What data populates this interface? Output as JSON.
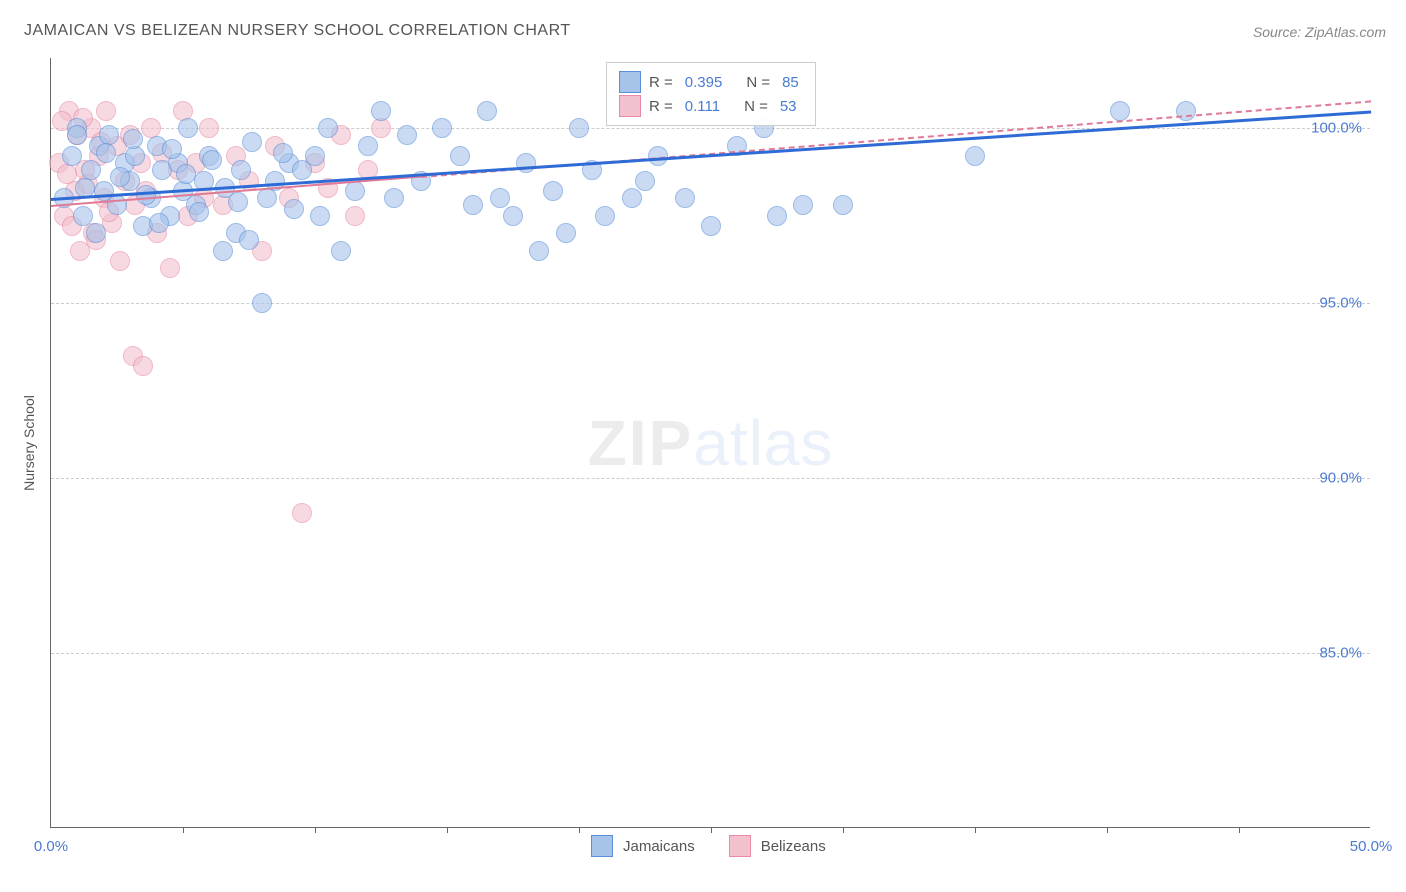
{
  "chart": {
    "type": "scatter",
    "title": "JAMAICAN VS BELIZEAN NURSERY SCHOOL CORRELATION CHART",
    "source_label": "Source: ZipAtlas.com",
    "y_axis_label": "Nursery School",
    "watermark_zip": "ZIP",
    "watermark_atlas": "atlas",
    "background_color": "#ffffff",
    "grid_color": "#cccccc",
    "axis_color": "#666666",
    "label_color": "#4a7bd0",
    "title_color": "#555555",
    "title_fontsize": 16,
    "label_fontsize": 15,
    "xlim": [
      0,
      50
    ],
    "ylim": [
      80,
      102
    ],
    "x_tick_step": 5,
    "y_ticks": [
      85,
      90,
      95,
      100
    ],
    "y_tick_labels": [
      "85.0%",
      "90.0%",
      "95.0%",
      "100.0%"
    ],
    "x_start_label": "0.0%",
    "x_end_label": "50.0%",
    "marker_radius": 10,
    "series": [
      {
        "name": "Jamaicans",
        "color_fill": "#a6c3ea",
        "color_stroke": "#5b8fd8",
        "trend_color": "#2e6bd6",
        "trend_width": 3,
        "trend_style": "solid",
        "R": "0.395",
        "N": "85",
        "trend": {
          "x1": 0,
          "y1": 98.0,
          "x2": 50,
          "y2": 100.5
        },
        "points": [
          [
            0.5,
            98.0
          ],
          [
            0.8,
            99.2
          ],
          [
            1.0,
            100.0
          ],
          [
            1.2,
            97.5
          ],
          [
            1.5,
            98.8
          ],
          [
            1.8,
            99.5
          ],
          [
            2.0,
            98.2
          ],
          [
            2.2,
            99.8
          ],
          [
            2.5,
            97.8
          ],
          [
            2.8,
            99.0
          ],
          [
            3.0,
            98.5
          ],
          [
            3.2,
            99.2
          ],
          [
            3.5,
            97.2
          ],
          [
            3.8,
            98.0
          ],
          [
            4.0,
            99.5
          ],
          [
            4.2,
            98.8
          ],
          [
            4.5,
            97.5
          ],
          [
            4.8,
            99.0
          ],
          [
            5.0,
            98.2
          ],
          [
            5.2,
            100.0
          ],
          [
            5.5,
            97.8
          ],
          [
            5.8,
            98.5
          ],
          [
            6.0,
            99.2
          ],
          [
            6.5,
            96.5
          ],
          [
            7.0,
            97.0
          ],
          [
            7.2,
            98.8
          ],
          [
            7.5,
            96.8
          ],
          [
            8.0,
            95.0
          ],
          [
            8.5,
            98.5
          ],
          [
            9.0,
            99.0
          ],
          [
            9.5,
            98.8
          ],
          [
            10.0,
            99.2
          ],
          [
            10.2,
            97.5
          ],
          [
            10.5,
            100.0
          ],
          [
            11.0,
            96.5
          ],
          [
            11.5,
            98.2
          ],
          [
            12.0,
            99.5
          ],
          [
            12.5,
            100.5
          ],
          [
            13.0,
            98.0
          ],
          [
            13.5,
            99.8
          ],
          [
            14.0,
            98.5
          ],
          [
            14.8,
            100.0
          ],
          [
            15.5,
            99.2
          ],
          [
            16.0,
            97.8
          ],
          [
            16.5,
            100.5
          ],
          [
            17.0,
            98.0
          ],
          [
            17.5,
            97.5
          ],
          [
            18.0,
            99.0
          ],
          [
            18.5,
            96.5
          ],
          [
            19.0,
            98.2
          ],
          [
            19.5,
            97.0
          ],
          [
            20.0,
            100.0
          ],
          [
            20.5,
            98.8
          ],
          [
            21.0,
            97.5
          ],
          [
            22.0,
            98.0
          ],
          [
            22.5,
            98.5
          ],
          [
            23.0,
            99.2
          ],
          [
            24.0,
            98.0
          ],
          [
            25.0,
            97.2
          ],
          [
            26.0,
            99.5
          ],
          [
            27.0,
            100.0
          ],
          [
            27.5,
            97.5
          ],
          [
            28.5,
            97.8
          ],
          [
            30.0,
            97.8
          ],
          [
            35.0,
            99.2
          ],
          [
            40.5,
            100.5
          ],
          [
            43.0,
            100.5
          ],
          [
            1.0,
            99.8
          ],
          [
            1.3,
            98.3
          ],
          [
            1.7,
            97.0
          ],
          [
            2.1,
            99.3
          ],
          [
            2.6,
            98.6
          ],
          [
            3.1,
            99.7
          ],
          [
            3.6,
            98.1
          ],
          [
            4.1,
            97.3
          ],
          [
            4.6,
            99.4
          ],
          [
            5.1,
            98.7
          ],
          [
            5.6,
            97.6
          ],
          [
            6.1,
            99.1
          ],
          [
            6.6,
            98.3
          ],
          [
            7.1,
            97.9
          ],
          [
            7.6,
            99.6
          ],
          [
            8.2,
            98.0
          ],
          [
            8.8,
            99.3
          ],
          [
            9.2,
            97.7
          ]
        ]
      },
      {
        "name": "Belizeans",
        "color_fill": "#f3c0ce",
        "color_stroke": "#e88ba5",
        "trend_color": "#e07a96",
        "trend_width": 2,
        "trend_style_solid_to": 14,
        "trend_style": "solid",
        "R": "0.111",
        "N": "53",
        "trend": {
          "x1": 0,
          "y1": 97.8,
          "x2": 50,
          "y2": 100.8
        },
        "points": [
          [
            0.3,
            99.0
          ],
          [
            0.5,
            97.5
          ],
          [
            0.7,
            100.5
          ],
          [
            0.9,
            98.2
          ],
          [
            1.0,
            99.8
          ],
          [
            1.1,
            96.5
          ],
          [
            1.3,
            98.8
          ],
          [
            1.5,
            100.0
          ],
          [
            1.6,
            97.0
          ],
          [
            1.8,
            99.2
          ],
          [
            2.0,
            98.0
          ],
          [
            2.1,
            100.5
          ],
          [
            2.3,
            97.3
          ],
          [
            2.5,
            99.5
          ],
          [
            2.6,
            96.2
          ],
          [
            2.8,
            98.5
          ],
          [
            3.0,
            99.8
          ],
          [
            3.1,
            93.5
          ],
          [
            3.2,
            97.8
          ],
          [
            3.4,
            99.0
          ],
          [
            3.5,
            93.2
          ],
          [
            3.6,
            98.2
          ],
          [
            3.8,
            100.0
          ],
          [
            4.0,
            97.0
          ],
          [
            4.2,
            99.3
          ],
          [
            4.5,
            96.0
          ],
          [
            4.8,
            98.8
          ],
          [
            5.0,
            100.5
          ],
          [
            5.2,
            97.5
          ],
          [
            5.5,
            99.0
          ],
          [
            5.8,
            98.0
          ],
          [
            6.0,
            100.0
          ],
          [
            6.5,
            97.8
          ],
          [
            7.0,
            99.2
          ],
          [
            7.5,
            98.5
          ],
          [
            8.0,
            96.5
          ],
          [
            8.5,
            99.5
          ],
          [
            9.0,
            98.0
          ],
          [
            9.5,
            89.0
          ],
          [
            10.0,
            99.0
          ],
          [
            10.5,
            98.3
          ],
          [
            11.0,
            99.8
          ],
          [
            11.5,
            97.5
          ],
          [
            12.0,
            98.8
          ],
          [
            12.5,
            100.0
          ],
          [
            0.4,
            100.2
          ],
          [
            0.6,
            98.7
          ],
          [
            0.8,
            97.2
          ],
          [
            1.2,
            100.3
          ],
          [
            1.4,
            98.4
          ],
          [
            1.7,
            96.8
          ],
          [
            1.9,
            99.6
          ],
          [
            2.2,
            97.6
          ]
        ]
      }
    ],
    "stats_legend": {
      "rows": [
        {
          "swatch_fill": "#a6c3ea",
          "swatch_stroke": "#5b8fd8",
          "r_label": "R =",
          "r_val": "0.395",
          "n_label": "N =",
          "n_val": "85"
        },
        {
          "swatch_fill": "#f3c0ce",
          "swatch_stroke": "#e88ba5",
          "r_label": "R =",
          "r_val": "0.111",
          "n_label": "N =",
          "n_val": "53"
        }
      ]
    },
    "bottom_legend": [
      {
        "swatch_fill": "#a6c3ea",
        "swatch_stroke": "#5b8fd8",
        "label": "Jamaicans"
      },
      {
        "swatch_fill": "#f3c0ce",
        "swatch_stroke": "#e88ba5",
        "label": "Belizeans"
      }
    ]
  }
}
